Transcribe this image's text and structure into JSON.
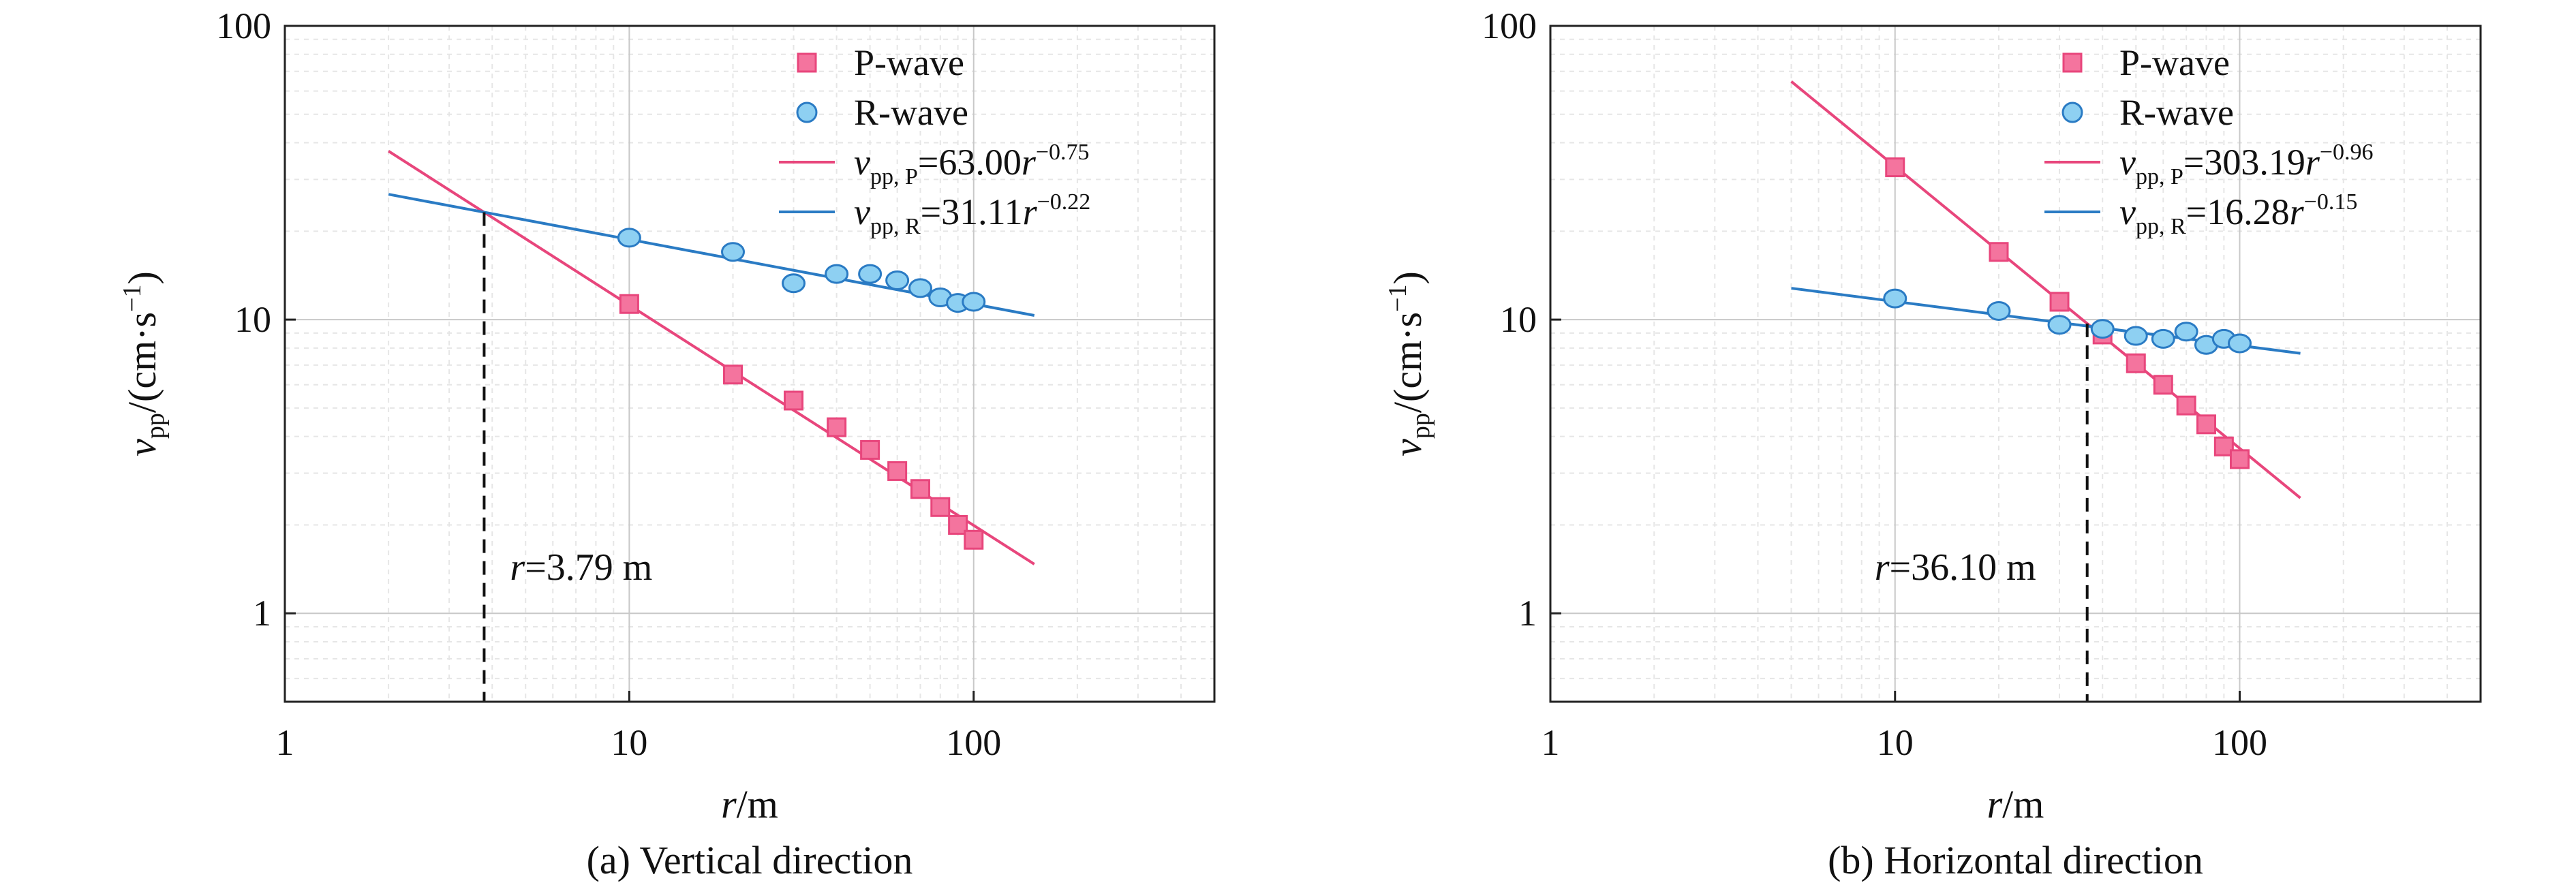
{
  "chart_data": [
    {
      "type": "scatter",
      "caption": "(a) Vertical direction",
      "xlabel": {
        "var": "r",
        "unit": "/m"
      },
      "ylabel": {
        "var": "v",
        "sub": "pp",
        "unit": "/(cm·s",
        "sup": "−1",
        "close": ")"
      },
      "xscale": "log",
      "yscale": "log",
      "xlim": [
        1,
        500
      ],
      "ylim": [
        0.5,
        100
      ],
      "xticks": [
        1,
        10,
        100
      ],
      "xtick_labels": [
        "1",
        "10",
        "100"
      ],
      "yticks": [
        1,
        10,
        100
      ],
      "ytick_labels": [
        "1",
        "10",
        "100"
      ],
      "grid": true,
      "legend_position": "top-right",
      "series": [
        {
          "name": "P-wave",
          "marker": "square",
          "color": "#e8467c",
          "fill": "#f4749e",
          "x": [
            10,
            20,
            30,
            40,
            50,
            60,
            70,
            80,
            90,
            100
          ],
          "y": [
            11.3,
            6.5,
            5.3,
            4.3,
            3.6,
            3.05,
            2.65,
            2.3,
            2.0,
            1.78
          ]
        },
        {
          "name": "R-wave",
          "marker": "circle",
          "color": "#2a7bc4",
          "fill": "#8ed0f2",
          "x": [
            10,
            20,
            30,
            40,
            50,
            60,
            70,
            80,
            90,
            100
          ],
          "y": [
            19,
            17,
            13.3,
            14.3,
            14.3,
            13.6,
            12.8,
            11.9,
            11.4,
            11.5
          ]
        }
      ],
      "fits": [
        {
          "label_var": "v",
          "label_sub": "pp, P",
          "label_eq": "=63.00",
          "label_base": "r",
          "label_exp": "−0.75",
          "coef": 63.0,
          "exponent": -0.75,
          "x_range": [
            2,
            150
          ],
          "color": "#e8467c"
        },
        {
          "label_var": "v",
          "label_sub": "pp, R",
          "label_eq": "=31.11",
          "label_base": "r",
          "label_exp": "−0.22",
          "coef": 31.11,
          "exponent": -0.22,
          "x_range": [
            2,
            150
          ],
          "color": "#2a7bc4"
        }
      ],
      "intersection": {
        "x": 3.79,
        "label_var": "r",
        "label_value": "=3.79 m"
      }
    },
    {
      "type": "scatter",
      "caption": "(b) Horizontal direction",
      "xlabel": {
        "var": "r",
        "unit": "/m"
      },
      "ylabel": {
        "var": "v",
        "sub": "pp",
        "unit": "/(cm·s",
        "sup": "−1",
        "close": ")"
      },
      "xscale": "log",
      "yscale": "log",
      "xlim": [
        1,
        500
      ],
      "ylim": [
        0.5,
        100
      ],
      "xticks": [
        1,
        10,
        100
      ],
      "xtick_labels": [
        "1",
        "10",
        "100"
      ],
      "yticks": [
        1,
        10,
        100
      ],
      "ytick_labels": [
        "1",
        "10",
        "100"
      ],
      "grid": true,
      "legend_position": "top-right",
      "series": [
        {
          "name": "P-wave",
          "marker": "square",
          "color": "#e8467c",
          "fill": "#f4749e",
          "x": [
            10,
            20,
            30,
            40,
            50,
            60,
            70,
            80,
            90,
            100
          ],
          "y": [
            33,
            17,
            11.5,
            8.9,
            7.1,
            6.0,
            5.1,
            4.4,
            3.7,
            3.35
          ]
        },
        {
          "name": "R-wave",
          "marker": "circle",
          "color": "#2a7bc4",
          "fill": "#8ed0f2",
          "x": [
            10,
            20,
            30,
            40,
            50,
            60,
            70,
            80,
            90,
            100
          ],
          "y": [
            11.8,
            10.7,
            9.6,
            9.3,
            8.8,
            8.6,
            9.1,
            8.2,
            8.6,
            8.3
          ]
        }
      ],
      "fits": [
        {
          "label_var": "v",
          "label_sub": "pp, P",
          "label_eq": "=303.19",
          "label_base": "r",
          "label_exp": "−0.96",
          "coef": 303.19,
          "exponent": -0.96,
          "x_range": [
            5,
            150
          ],
          "color": "#e8467c"
        },
        {
          "label_var": "v",
          "label_sub": "pp, R",
          "label_eq": "=16.28",
          "label_base": "r",
          "label_exp": "−0.15",
          "coef": 16.28,
          "exponent": -0.15,
          "x_range": [
            5,
            150
          ],
          "color": "#2a7bc4"
        }
      ],
      "intersection": {
        "x": 36.1,
        "label_var": "r",
        "label_value": "=36.10 m"
      }
    }
  ]
}
